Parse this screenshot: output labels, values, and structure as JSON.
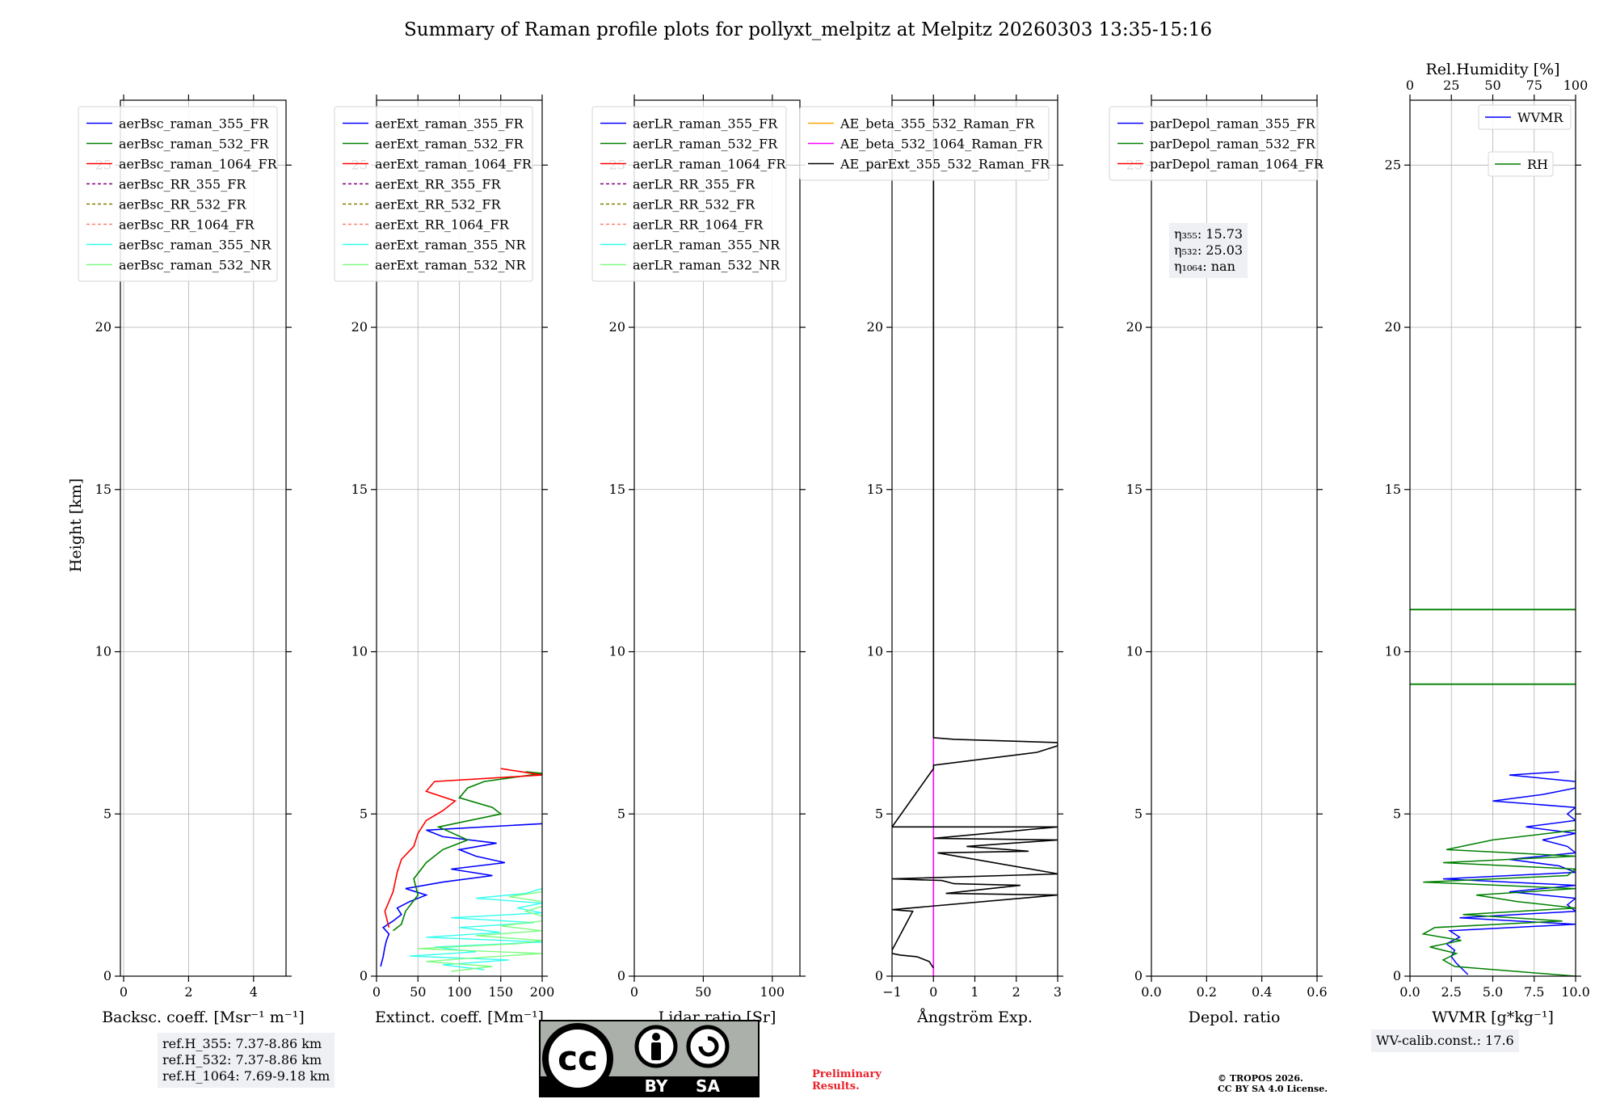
{
  "title": "Summary of Raman profile plots for pollyxt_melpitz at Melpitz 20260303 13:35-15:16",
  "colors": {
    "blue": "#0000ff",
    "green": "#008000",
    "red": "#ff0000",
    "purple": "#800080",
    "olive": "#808000",
    "salmon": "#fa8072",
    "aqua": "#33ffee",
    "lightgreen": "#7cfc80",
    "orange": "#ffa500",
    "magenta": "#ff00ff",
    "black": "#000000"
  },
  "annotations": {
    "ref_h_355": "ref.H_355: 7.37-8.86 km",
    "ref_h_532": "ref.H_532: 7.37-8.86 km",
    "ref_h_1064": "ref.H_1064: 7.69-9.18 km",
    "eta_355": "η₃₅₅: 15.73",
    "eta_532": "η₅₃₂: 25.03",
    "eta_1064": "η₁₀₆₄: nan",
    "wv_calib": "WV-calib.const.: 17.6",
    "preliminary_1": "Preliminary",
    "preliminary_2": "Results.",
    "copyright_1": "© TROPOS 2026.",
    "copyright_2": "CC BY SA 4.0 License."
  },
  "license_badge": {
    "cc": "cc",
    "by": "BY",
    "sa": "SA"
  },
  "chart_data": [
    {
      "id": "backscatter",
      "type": "line",
      "xlabel": "Backsc. coeff. [Msr⁻¹ m⁻¹]",
      "ylabel": "Height [km]",
      "xlim": [
        -0.1,
        5
      ],
      "ylim": [
        0,
        27
      ],
      "xticks": [
        0,
        2,
        4
      ],
      "xticklabels": [
        "0",
        "2",
        "4"
      ],
      "yticks": [
        0,
        5,
        10,
        15,
        20,
        25
      ],
      "yticklabels": [
        "0",
        "5",
        "10",
        "15",
        "20",
        "25"
      ],
      "legend_position": "upper-left",
      "legend": [
        {
          "label": "aerBsc_raman_355_FR",
          "color": "#0000ff",
          "dash": false
        },
        {
          "label": "aerBsc_raman_532_FR",
          "color": "#008000",
          "dash": false
        },
        {
          "label": "aerBsc_raman_1064_FR",
          "color": "#ff0000",
          "dash": false
        },
        {
          "label": "aerBsc_RR_355_FR",
          "color": "#800080",
          "dash": true
        },
        {
          "label": "aerBsc_RR_532_FR",
          "color": "#808000",
          "dash": true
        },
        {
          "label": "aerBsc_RR_1064_FR",
          "color": "#fa8072",
          "dash": true
        },
        {
          "label": "aerBsc_raman_355_NR",
          "color": "#33ffee",
          "dash": false
        },
        {
          "label": "aerBsc_raman_532_NR",
          "color": "#7cfc80",
          "dash": false
        }
      ],
      "series": []
    },
    {
      "id": "extinction",
      "type": "line",
      "xlabel": "Extinct. coeff. [Mm⁻¹]",
      "ylabel": "",
      "xlim": [
        0,
        200
      ],
      "ylim": [
        0,
        27
      ],
      "xticks": [
        0,
        50,
        100,
        150,
        200
      ],
      "xticklabels": [
        "0",
        "50",
        "100",
        "150",
        "200"
      ],
      "yticks": [
        0,
        5,
        10,
        15,
        20,
        25
      ],
      "yticklabels": [
        "0",
        "5",
        "10",
        "15",
        "20",
        "25"
      ],
      "legend_position": "upper-left",
      "legend": [
        {
          "label": "aerExt_raman_355_FR",
          "color": "#0000ff",
          "dash": false
        },
        {
          "label": "aerExt_raman_532_FR",
          "color": "#008000",
          "dash": false
        },
        {
          "label": "aerExt_raman_1064_FR",
          "color": "#ff0000",
          "dash": false
        },
        {
          "label": "aerExt_RR_355_FR",
          "color": "#800080",
          "dash": true
        },
        {
          "label": "aerExt_RR_532_FR",
          "color": "#808000",
          "dash": true
        },
        {
          "label": "aerExt_RR_1064_FR",
          "color": "#fa8072",
          "dash": true
        },
        {
          "label": "aerExt_raman_355_NR",
          "color": "#33ffee",
          "dash": false
        },
        {
          "label": "aerExt_raman_532_NR",
          "color": "#7cfc80",
          "dash": false
        }
      ],
      "series": [
        {
          "name": "aerExt_raman_355_NR",
          "color": "#33ffee",
          "width": 1.4,
          "h": [
            0.2,
            0.35,
            0.5,
            0.62,
            0.75,
            0.9,
            1.05,
            1.2,
            1.35,
            1.5,
            1.65,
            1.8,
            1.95,
            2.1,
            2.25,
            2.4,
            2.55,
            2.7
          ],
          "v": [
            130,
            80,
            160,
            40,
            120,
            70,
            200,
            60,
            150,
            100,
            190,
            90,
            200,
            170,
            200,
            120,
            180,
            200
          ]
        },
        {
          "name": "aerExt_raman_532_NR",
          "color": "#7cfc80",
          "width": 1.4,
          "h": [
            0.15,
            0.3,
            0.45,
            0.55,
            0.7,
            0.85,
            1.0,
            1.1,
            1.25,
            1.4,
            1.55,
            1.7,
            1.85,
            2.0,
            2.15,
            2.3,
            2.45,
            2.6,
            2.75
          ],
          "v": [
            90,
            140,
            60,
            110,
            200,
            50,
            170,
            200,
            120,
            200,
            150,
            200,
            200,
            180,
            200,
            200,
            160,
            200,
            200
          ]
        },
        {
          "name": "aerExt_raman_355_FR",
          "color": "#0000ff",
          "width": 1.6,
          "h": [
            0.3,
            0.6,
            0.9,
            1.1,
            1.3,
            1.5,
            1.7,
            1.9,
            2.1,
            2.3,
            2.5,
            2.7,
            2.9,
            3.1,
            3.3,
            3.5,
            3.7,
            3.9,
            4.1,
            4.3,
            4.5,
            4.7
          ],
          "v": [
            5,
            8,
            10,
            12,
            15,
            8,
            20,
            30,
            25,
            40,
            60,
            35,
            80,
            140,
            90,
            155,
            120,
            100,
            145,
            80,
            60,
            200
          ]
        },
        {
          "name": "aerExt_raman_532_FR",
          "color": "#008000",
          "width": 1.6,
          "h": [
            1.4,
            1.6,
            2.0,
            2.5,
            3.0,
            3.5,
            3.9,
            4.2,
            4.6,
            5.0,
            5.2,
            5.5,
            5.8,
            6.0,
            6.25,
            6.3
          ],
          "v": [
            20,
            30,
            35,
            50,
            45,
            60,
            80,
            110,
            75,
            150,
            140,
            100,
            110,
            130,
            200,
            180
          ]
        },
        {
          "name": "aerExt_raman_1064_FR",
          "color": "#ff0000",
          "width": 1.6,
          "h": [
            1.5,
            2.0,
            2.6,
            3.2,
            3.6,
            4.0,
            4.4,
            4.8,
            5.1,
            5.4,
            5.7,
            6.0,
            6.2,
            6.4
          ],
          "v": [
            15,
            10,
            20,
            25,
            30,
            45,
            50,
            60,
            80,
            95,
            60,
            70,
            200,
            150
          ]
        }
      ]
    },
    {
      "id": "lidar_ratio",
      "type": "line",
      "xlabel": "Lidar ratio [Sr]",
      "ylabel": "",
      "xlim": [
        0,
        120
      ],
      "ylim": [
        0,
        27
      ],
      "xticks": [
        0,
        50,
        100
      ],
      "xticklabels": [
        "0",
        "50",
        "100"
      ],
      "yticks": [
        0,
        5,
        10,
        15,
        20,
        25
      ],
      "yticklabels": [
        "0",
        "5",
        "10",
        "15",
        "20",
        "25"
      ],
      "legend_position": "upper-left",
      "legend": [
        {
          "label": "aerLR_raman_355_FR",
          "color": "#0000ff",
          "dash": false
        },
        {
          "label": "aerLR_raman_532_FR",
          "color": "#008000",
          "dash": false
        },
        {
          "label": "aerLR_raman_1064_FR",
          "color": "#ff0000",
          "dash": false
        },
        {
          "label": "aerLR_RR_355_FR",
          "color": "#800080",
          "dash": true
        },
        {
          "label": "aerLR_RR_532_FR",
          "color": "#808000",
          "dash": true
        },
        {
          "label": "aerLR_RR_1064_FR",
          "color": "#fa8072",
          "dash": true
        },
        {
          "label": "aerLR_raman_355_NR",
          "color": "#33ffee",
          "dash": false
        },
        {
          "label": "aerLR_raman_532_NR",
          "color": "#7cfc80",
          "dash": false
        }
      ],
      "series": []
    },
    {
      "id": "angstrom",
      "type": "line",
      "xlabel": "Ångström Exp.",
      "ylabel": "",
      "xlim": [
        -1,
        3
      ],
      "ylim": [
        0,
        27
      ],
      "xticks": [
        -1,
        0,
        1,
        2,
        3
      ],
      "xticklabels": [
        "−1",
        "0",
        "1",
        "2",
        "3"
      ],
      "yticks": [
        0,
        5,
        10,
        15,
        20,
        25
      ],
      "yticklabels": [
        "0",
        "5",
        "10",
        "15",
        "20",
        "25"
      ],
      "legend_position": "upper-right",
      "legend": [
        {
          "label": "AE_beta_355_532_Raman_FR",
          "color": "#ffa500",
          "dash": false
        },
        {
          "label": "AE_beta_532_1064_Raman_FR",
          "color": "#ff00ff",
          "dash": false
        },
        {
          "label": "AE_parExt_355_532_Raman_FR",
          "color": "#000000",
          "dash": false
        }
      ],
      "series": [
        {
          "name": "AE_beta_532_1064_Raman_FR",
          "color": "#ff00ff",
          "width": 1.6,
          "h": [
            0,
            27
          ],
          "v": [
            0,
            0
          ]
        },
        {
          "name": "AE_parExt_355_532_Raman_FR",
          "color": "#000000",
          "width": 1.6,
          "h": [
            0.25,
            0.45,
            0.6,
            0.65,
            0.7,
            0.8,
            2.0,
            2.05,
            2.5,
            2.55,
            2.8,
            2.85,
            2.95,
            3.0,
            3.15,
            3.2,
            3.8,
            3.85,
            4.0,
            4.2,
            4.25,
            4.6,
            4.6,
            6.4,
            6.5,
            6.9,
            7.1,
            7.2,
            7.3,
            7.35,
            7.4,
            7.5,
            27
          ],
          "v": [
            0,
            -0.1,
            -0.4,
            -0.8,
            -1,
            -1,
            -0.5,
            -1,
            3,
            0.3,
            2.1,
            0.5,
            0.2,
            -1,
            3,
            2.8,
            0.1,
            2.3,
            0.8,
            3,
            0,
            3,
            -1,
            0,
            0,
            2.5,
            3,
            3,
            0.5,
            0,
            0,
            0,
            0
          ]
        }
      ]
    },
    {
      "id": "depol",
      "type": "line",
      "xlabel": "Depol. ratio",
      "ylabel": "",
      "xlim": [
        0,
        0.6
      ],
      "ylim": [
        0,
        27
      ],
      "xticks": [
        0,
        0.2,
        0.4,
        0.6
      ],
      "xticklabels": [
        "0.0",
        "0.2",
        "0.4",
        "0.6"
      ],
      "yticks": [
        0,
        5,
        10,
        15,
        20,
        25
      ],
      "yticklabels": [
        "0",
        "5",
        "10",
        "15",
        "20",
        "25"
      ],
      "legend_position": "upper-left",
      "legend": [
        {
          "label": "parDepol_raman_355_FR",
          "color": "#0000ff",
          "dash": false
        },
        {
          "label": "parDepol_raman_532_FR",
          "color": "#008000",
          "dash": false
        },
        {
          "label": "parDepol_raman_1064_FR",
          "color": "#ff0000",
          "dash": false
        }
      ],
      "series": []
    },
    {
      "id": "wvmr",
      "type": "line",
      "xlabel": "WVMR [g*kg⁻¹]",
      "ylabel": "",
      "top_xlabel": "Rel.Humidity [%]",
      "xlim": [
        0,
        10
      ],
      "ylim": [
        0,
        27
      ],
      "xticks": [
        0,
        2.5,
        5,
        7.5,
        10
      ],
      "xticklabels": [
        "0.0",
        "2.5",
        "5.0",
        "7.5",
        "10.0"
      ],
      "top_xticks": [
        0,
        25,
        50,
        75,
        100
      ],
      "top_xticklabels": [
        "0",
        "25",
        "50",
        "75",
        "100"
      ],
      "yticks": [
        0,
        5,
        10,
        15,
        20,
        25
      ],
      "yticklabels": [
        "0",
        "5",
        "10",
        "15",
        "20",
        "25"
      ],
      "legend_position": "upper-right",
      "legend": [
        {
          "label": "WVMR",
          "color": "#0000ff",
          "dash": false
        },
        {
          "label": "RH",
          "color": "#008000",
          "dash": false
        }
      ],
      "series": [
        {
          "name": "WVMR",
          "color": "#0000ff",
          "width": 1.5,
          "h": [
            0.05,
            0.2,
            0.4,
            0.6,
            0.8,
            1.0,
            1.2,
            1.4,
            1.6,
            1.8,
            2.0,
            2.2,
            2.4,
            2.6,
            2.8,
            3.0,
            3.2,
            3.4,
            3.6,
            3.8,
            4.0,
            4.2,
            4.4,
            4.6,
            4.8,
            5.0,
            5.2,
            5.4,
            5.6,
            5.8,
            6.0,
            6.2,
            6.3
          ],
          "v": [
            3.5,
            3.2,
            2.8,
            2.5,
            2.7,
            2.2,
            3.0,
            2.4,
            10,
            3,
            10,
            9.5,
            10,
            6,
            10,
            2,
            10,
            9,
            6,
            10,
            9.5,
            8,
            10,
            7,
            10,
            9.5,
            10,
            5,
            8,
            10,
            10,
            6,
            9
          ]
        },
        {
          "name": "RH",
          "color": "#008000",
          "width": 1.5,
          "h": [
            0,
            0.3,
            0.5,
            0.7,
            0.9,
            1.1,
            1.3,
            1.5,
            1.7,
            1.9,
            2.1,
            2.3,
            2.5,
            2.7,
            2.9,
            3.1,
            3.3,
            3.5,
            3.7,
            3.9,
            4.2,
            4.5,
            4.7,
            5.0,
            5.5,
            6.0,
            6.35
          ],
          "v": [
            10,
            2.7,
            2.0,
            2.8,
            1.2,
            3.1,
            0.8,
            1.5,
            9.2,
            3.2,
            10,
            6.5,
            4,
            10,
            0.8,
            9.5,
            10,
            2,
            10,
            2.2,
            5,
            10,
            10,
            10,
            10,
            10,
            10
          ]
        },
        {
          "name": "RH_upper_9",
          "color": "#008000",
          "width": 1.8,
          "h": [
            9.0,
            9.0
          ],
          "v": [
            0,
            10
          ]
        },
        {
          "name": "RH_upper_11",
          "color": "#008000",
          "width": 1.8,
          "h": [
            11.3,
            11.3
          ],
          "v": [
            0,
            10
          ]
        }
      ]
    }
  ]
}
